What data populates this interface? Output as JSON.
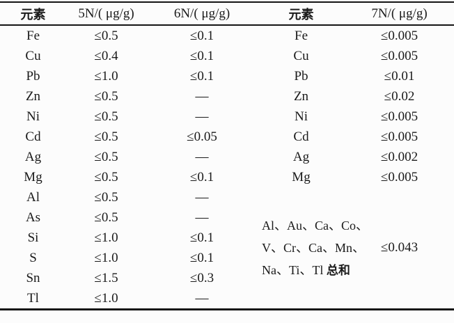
{
  "table": {
    "headers": [
      "元素",
      "5N/( μg/g)",
      "6N/( μg/g)",
      "元素",
      "7N/( μg/g)"
    ],
    "rows_full": [
      {
        "el": "Fe",
        "n5": "≤0.5",
        "n6": "≤0.1",
        "el2": "Fe",
        "n7": "≤0.005"
      },
      {
        "el": "Cu",
        "n5": "≤0.4",
        "n6": "≤0.1",
        "el2": "Cu",
        "n7": "≤0.005"
      },
      {
        "el": "Pb",
        "n5": "≤1.0",
        "n6": "≤0.1",
        "el2": "Pb",
        "n7": "≤0.01"
      },
      {
        "el": "Zn",
        "n5": "≤0.5",
        "n6": "—",
        "el2": "Zn",
        "n7": "≤0.02"
      },
      {
        "el": "Ni",
        "n5": "≤0.5",
        "n6": "—",
        "el2": "Ni",
        "n7": "≤0.005"
      },
      {
        "el": "Cd",
        "n5": "≤0.5",
        "n6": "≤0.05",
        "el2": "Cd",
        "n7": "≤0.005"
      },
      {
        "el": "Ag",
        "n5": "≤0.5",
        "n6": "—",
        "el2": "Ag",
        "n7": "≤0.002"
      },
      {
        "el": "Mg",
        "n5": "≤0.5",
        "n6": "≤0.1",
        "el2": "Mg",
        "n7": "≤0.005"
      }
    ],
    "rows_left": [
      {
        "el": "Al",
        "n5": "≤0.5",
        "n6": "—"
      },
      {
        "el": "As",
        "n5": "≤0.5",
        "n6": "—"
      },
      {
        "el": "Si",
        "n5": "≤1.0",
        "n6": "≤0.1"
      },
      {
        "el": "S",
        "n5": "≤1.0",
        "n6": "≤0.1"
      },
      {
        "el": "Sn",
        "n5": "≤1.5",
        "n6": "≤0.3"
      },
      {
        "el": "Tl",
        "n5": "≤1.0",
        "n6": "—"
      }
    ],
    "merged_cell": {
      "line1": "Al、Au、Ca、Co、",
      "line2": "V、Cr、Ca、Mn、",
      "line3_text": "Na、Ti、Tl ",
      "sum_label": "总和",
      "value": "≤0.043"
    }
  }
}
